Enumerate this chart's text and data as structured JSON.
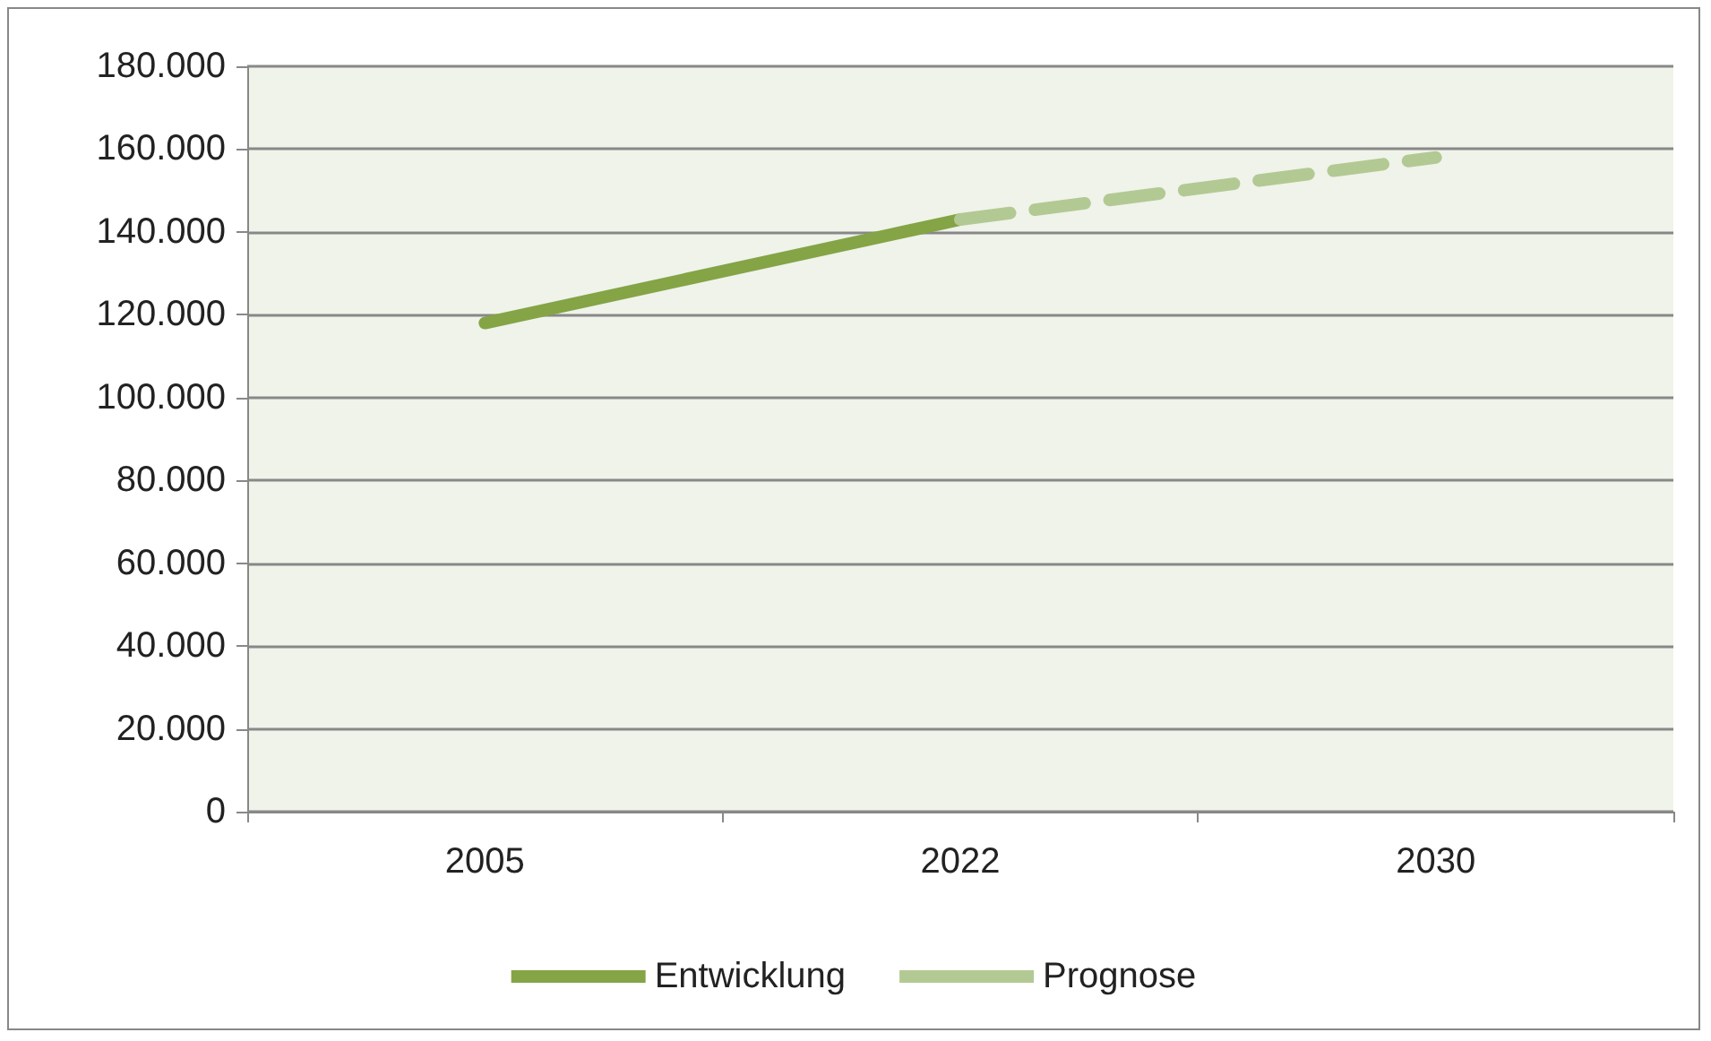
{
  "chart_data": {
    "type": "line",
    "categories": [
      "2005",
      "2022",
      "2030"
    ],
    "series": [
      {
        "name": "Entwicklung",
        "color": "#84a446",
        "values": [
          118000,
          143000,
          null
        ],
        "line_style": "solid"
      },
      {
        "name": "Prognose",
        "color": "#b3c993",
        "values": [
          null,
          143000,
          158000
        ],
        "line_style": "dashed"
      }
    ],
    "ylim": [
      0,
      180000
    ],
    "yticks": [
      {
        "value": 0,
        "label": "0"
      },
      {
        "value": 20000,
        "label": "20.000"
      },
      {
        "value": 40000,
        "label": "40.000"
      },
      {
        "value": 60000,
        "label": "60.000"
      },
      {
        "value": 80000,
        "label": "80.000"
      },
      {
        "value": 100000,
        "label": "100.000"
      },
      {
        "value": 120000,
        "label": "120.000"
      },
      {
        "value": 140000,
        "label": "140.000"
      },
      {
        "value": 160000,
        "label": "160.000"
      },
      {
        "value": 180000,
        "label": "180.000"
      }
    ],
    "grid": "y",
    "legend": "bottom",
    "marker": "none"
  }
}
